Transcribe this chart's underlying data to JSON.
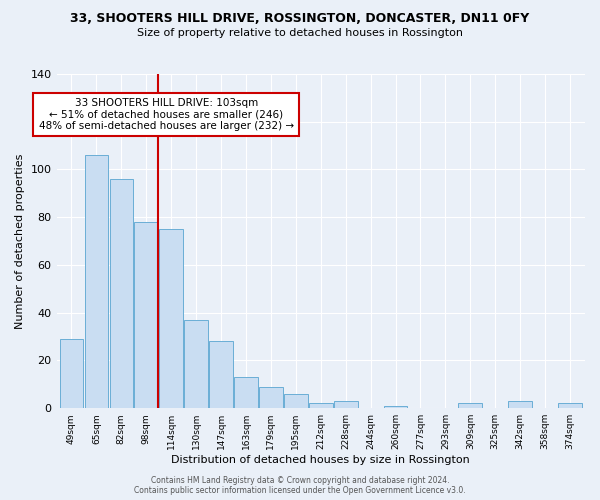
{
  "title_line1": "33, SHOOTERS HILL DRIVE, ROSSINGTON, DONCASTER, DN11 0FY",
  "title_line2": "Size of property relative to detached houses in Rossington",
  "xlabel": "Distribution of detached houses by size in Rossington",
  "ylabel": "Number of detached properties",
  "bar_labels": [
    "49sqm",
    "65sqm",
    "82sqm",
    "98sqm",
    "114sqm",
    "130sqm",
    "147sqm",
    "163sqm",
    "179sqm",
    "195sqm",
    "212sqm",
    "228sqm",
    "244sqm",
    "260sqm",
    "277sqm",
    "293sqm",
    "309sqm",
    "325sqm",
    "342sqm",
    "358sqm",
    "374sqm"
  ],
  "bar_values": [
    29,
    106,
    96,
    78,
    75,
    37,
    28,
    13,
    9,
    6,
    2,
    3,
    0,
    1,
    0,
    0,
    2,
    0,
    3,
    0,
    2
  ],
  "bar_color": "#c9ddf2",
  "bar_edge_color": "#6aaed6",
  "vline_color": "#cc0000",
  "annotation_text": "33 SHOOTERS HILL DRIVE: 103sqm\n← 51% of detached houses are smaller (246)\n48% of semi-detached houses are larger (232) →",
  "annotation_box_color": "#ffffff",
  "annotation_box_edge_color": "#cc0000",
  "ylim": [
    0,
    140
  ],
  "yticks": [
    0,
    20,
    40,
    60,
    80,
    100,
    120,
    140
  ],
  "footer_line1": "Contains HM Land Registry data © Crown copyright and database right 2024.",
  "footer_line2": "Contains public sector information licensed under the Open Government Licence v3.0.",
  "bg_color": "#eaf0f8",
  "plot_bg_color": "#eaf0f8"
}
